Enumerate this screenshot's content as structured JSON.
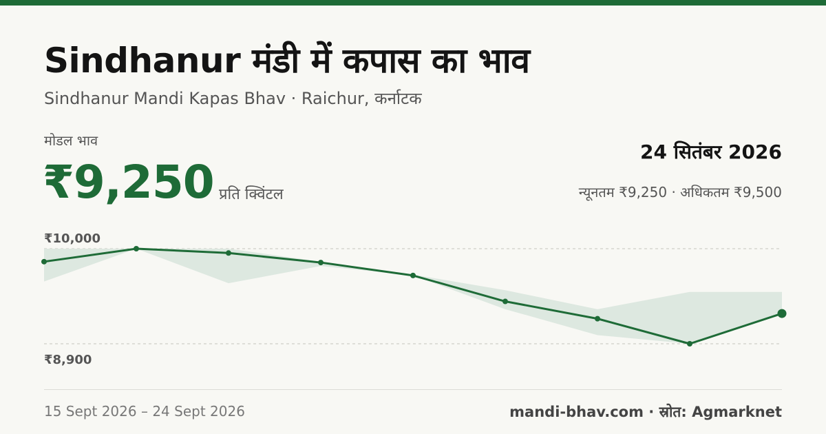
{
  "header": {
    "title": "Sindhanur मंडी में कपास का भाव",
    "subtitle": "Sindhanur Mandi Kapas Bhav · Raichur, कर्नाटक"
  },
  "price": {
    "label": "मोडल भाव",
    "value": "₹9,250",
    "unit": "प्रति क्विंटल"
  },
  "date": "24 सितंबर 2026",
  "minmax": "न्यूनतम ₹9,250 · अधिकतम ₹9,500",
  "footer": {
    "range": "15 Sept 2026 – 24 Sept 2026",
    "source": "mandi-bhav.com · स्रोत: Agmarknet"
  },
  "colors": {
    "accent": "#1e6b37",
    "band": "#dde8e0",
    "grid": "#c4c4bc"
  },
  "chart_data": {
    "type": "line",
    "yticks": [
      {
        "value": 10000,
        "label": "₹10,000"
      },
      {
        "value": 8900,
        "label": "₹8,900"
      }
    ],
    "ylim": [
      8900,
      10000
    ],
    "series": [
      {
        "values": [
          9850,
          10000,
          9950,
          9840,
          9690,
          9390,
          9190,
          8900,
          9250
        ]
      }
    ],
    "band_max": [
      10000,
      10000,
      10000,
      9850,
      9700,
      9520,
      9300,
      9500,
      9500
    ],
    "band_min": [
      9620,
      10000,
      9600,
      9800,
      9690,
      9300,
      9000,
      8900,
      9250
    ],
    "grid": "horizontal-dashed"
  }
}
